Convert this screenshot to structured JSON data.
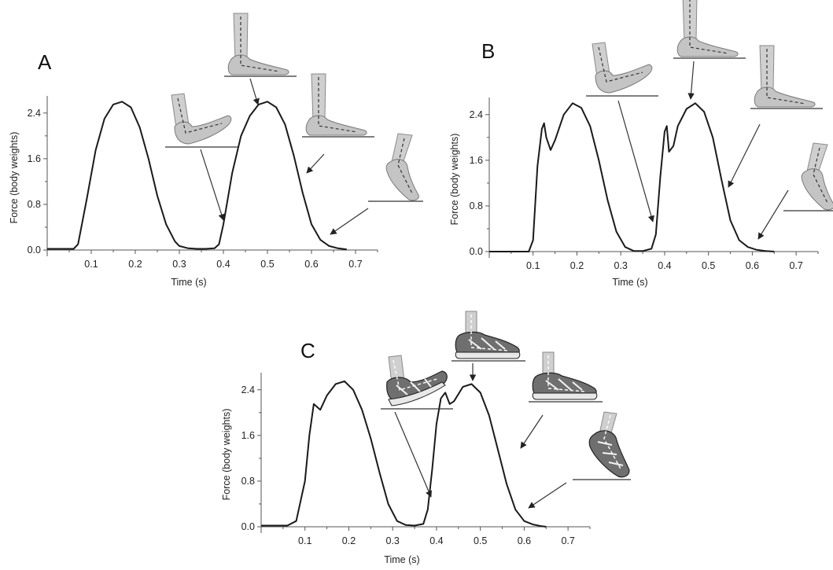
{
  "chart_data": [
    {
      "panel": "A",
      "type": "line",
      "ylabel": "Force (body weights)",
      "xlabel": "Time (s)",
      "xticks": [
        "0.1",
        "0.2",
        "0.3",
        "0.4",
        "0.5",
        "0.6",
        "0.7"
      ],
      "yticks": [
        "0.0",
        "0.8",
        "1.6",
        "2.4"
      ],
      "xlim": [
        0.0,
        0.75
      ],
      "ylim": [
        0.0,
        2.7
      ],
      "series": [
        {
          "x": [
            0.0,
            0.06,
            0.07,
            0.09,
            0.11,
            0.13,
            0.15,
            0.17,
            0.19,
            0.21,
            0.23,
            0.25,
            0.27,
            0.29,
            0.3,
            0.32,
            0.34,
            0.36,
            0.38,
            0.39,
            0.4,
            0.42,
            0.44,
            0.46,
            0.48,
            0.5,
            0.52,
            0.54,
            0.56,
            0.58,
            0.6,
            0.62,
            0.64,
            0.66,
            0.68
          ],
          "y": [
            0.02,
            0.02,
            0.1,
            0.9,
            1.75,
            2.3,
            2.55,
            2.6,
            2.5,
            2.15,
            1.6,
            0.95,
            0.45,
            0.15,
            0.07,
            0.03,
            0.02,
            0.02,
            0.03,
            0.1,
            0.45,
            1.35,
            2.0,
            2.35,
            2.55,
            2.6,
            2.5,
            2.2,
            1.65,
            1.0,
            0.45,
            0.18,
            0.07,
            0.03,
            0.01
          ]
        }
      ],
      "annotations": [
        "heel-strike",
        "mid-stance",
        "late-stance",
        "toe-off"
      ]
    },
    {
      "panel": "B",
      "type": "line",
      "ylabel": "Force (body weights)",
      "xlabel": "Time (s)",
      "xticks": [
        "0.1",
        "0.2",
        "0.3",
        "0.4",
        "0.5",
        "0.6",
        "0.7"
      ],
      "yticks": [
        "0.0",
        "0.8",
        "1.6",
        "2.4"
      ],
      "xlim": [
        0.0,
        0.75
      ],
      "ylim": [
        0.0,
        2.7
      ],
      "series": [
        {
          "x": [
            0.0,
            0.09,
            0.1,
            0.11,
            0.12,
            0.125,
            0.13,
            0.14,
            0.15,
            0.17,
            0.19,
            0.21,
            0.23,
            0.25,
            0.27,
            0.29,
            0.31,
            0.33,
            0.35,
            0.37,
            0.38,
            0.39,
            0.4,
            0.405,
            0.41,
            0.42,
            0.43,
            0.45,
            0.47,
            0.49,
            0.51,
            0.53,
            0.55,
            0.57,
            0.59,
            0.61,
            0.63,
            0.65
          ],
          "y": [
            0.0,
            0.0,
            0.2,
            1.5,
            2.15,
            2.25,
            2.0,
            1.78,
            1.95,
            2.4,
            2.6,
            2.52,
            2.2,
            1.6,
            0.9,
            0.35,
            0.08,
            0.01,
            0.01,
            0.05,
            0.3,
            1.3,
            2.1,
            2.2,
            1.75,
            1.85,
            2.2,
            2.5,
            2.6,
            2.45,
            2.0,
            1.25,
            0.55,
            0.2,
            0.08,
            0.03,
            0.01,
            0.0
          ]
        }
      ],
      "annotations": [
        "forefoot-strike",
        "mid-stance",
        "late-stance",
        "toe-off"
      ]
    },
    {
      "panel": "C",
      "type": "line",
      "ylabel": "Force (body weights)",
      "xlabel": "Time (s)",
      "xticks": [
        "0.1",
        "0.2",
        "0.3",
        "0.4",
        "0.5",
        "0.6",
        "0.7"
      ],
      "yticks": [
        "0.0",
        "0.8",
        "1.6",
        "2.4"
      ],
      "xlim": [
        0.0,
        0.75
      ],
      "ylim": [
        0.0,
        2.7
      ],
      "series": [
        {
          "x": [
            0.0,
            0.06,
            0.08,
            0.1,
            0.11,
            0.12,
            0.135,
            0.15,
            0.17,
            0.19,
            0.21,
            0.23,
            0.25,
            0.27,
            0.29,
            0.31,
            0.33,
            0.35,
            0.37,
            0.38,
            0.39,
            0.4,
            0.41,
            0.42,
            0.43,
            0.44,
            0.46,
            0.48,
            0.5,
            0.52,
            0.54,
            0.56,
            0.58,
            0.6,
            0.62,
            0.64,
            0.65
          ],
          "y": [
            0.02,
            0.02,
            0.1,
            0.8,
            1.6,
            2.15,
            2.05,
            2.3,
            2.5,
            2.55,
            2.4,
            2.05,
            1.55,
            0.95,
            0.4,
            0.1,
            0.03,
            0.02,
            0.05,
            0.3,
            1.0,
            1.8,
            2.25,
            2.35,
            2.15,
            2.2,
            2.45,
            2.5,
            2.35,
            1.95,
            1.35,
            0.75,
            0.3,
            0.1,
            0.04,
            0.01,
            0.0
          ]
        }
      ],
      "annotations": [
        "heel-strike",
        "mid-stance",
        "late-stance",
        "toe-off"
      ]
    }
  ]
}
